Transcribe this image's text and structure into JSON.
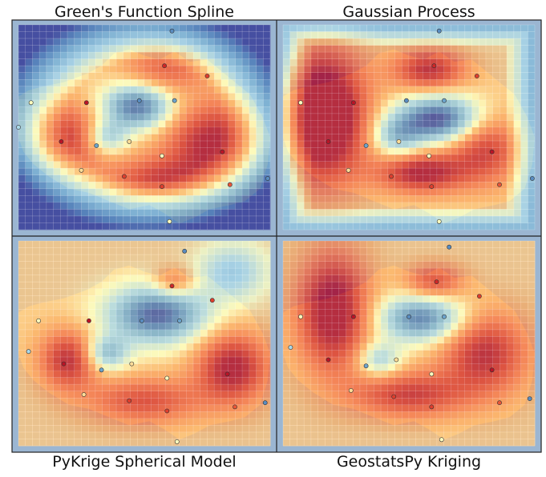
{
  "chart_data": [
    {
      "type": "heatmap",
      "title": "Green's Function Spline",
      "colormap": "RdYlBu_r",
      "background_color": "#9bb6d2",
      "land_color": "#f2e5a8",
      "grid": true,
      "blobs": [
        {
          "x": 0.47,
          "y": 0.4,
          "sx": 0.1,
          "sy": 0.08,
          "a": -0.55
        },
        {
          "x": 0.35,
          "y": 0.55,
          "sx": 0.06,
          "sy": 0.06,
          "a": -0.35
        },
        {
          "x": 0.2,
          "y": 0.55,
          "sx": 0.12,
          "sy": 0.12,
          "a": 0.35
        },
        {
          "x": 0.78,
          "y": 0.58,
          "sx": 0.14,
          "sy": 0.14,
          "a": 0.45
        },
        {
          "x": 0.58,
          "y": 0.22,
          "sx": 0.12,
          "sy": 0.08,
          "a": 0.25
        },
        {
          "x": 0.55,
          "y": 0.75,
          "sx": 0.14,
          "sy": 0.07,
          "a": 0.3
        }
      ],
      "edge_falloff": "elliptical",
      "points": [
        {
          "x": 0.61,
          "y": 0.03,
          "value": 0.15
        },
        {
          "x": 0.58,
          "y": 0.2,
          "value": 0.9
        },
        {
          "x": 0.75,
          "y": 0.25,
          "value": 0.85
        },
        {
          "x": 0.05,
          "y": 0.38,
          "value": 0.5
        },
        {
          "x": 0.27,
          "y": 0.38,
          "value": 0.95
        },
        {
          "x": 0.48,
          "y": 0.37,
          "value": 0.15
        },
        {
          "x": 0.62,
          "y": 0.37,
          "value": 0.2
        },
        {
          "x": 0.0,
          "y": 0.5,
          "value": 0.35
        },
        {
          "x": 0.17,
          "y": 0.57,
          "value": 0.95
        },
        {
          "x": 0.31,
          "y": 0.59,
          "value": 0.2
        },
        {
          "x": 0.44,
          "y": 0.57,
          "value": 0.55
        },
        {
          "x": 0.81,
          "y": 0.62,
          "value": 0.95
        },
        {
          "x": 0.57,
          "y": 0.64,
          "value": 0.5
        },
        {
          "x": 0.25,
          "y": 0.71,
          "value": 0.55
        },
        {
          "x": 0.42,
          "y": 0.74,
          "value": 0.85
        },
        {
          "x": 0.57,
          "y": 0.79,
          "value": 0.85
        },
        {
          "x": 0.84,
          "y": 0.78,
          "value": 0.8
        },
        {
          "x": 0.99,
          "y": 0.75,
          "value": 0.15
        },
        {
          "x": 0.6,
          "y": 0.96,
          "value": 0.5
        }
      ]
    },
    {
      "type": "heatmap",
      "title": "Gaussian Process",
      "colormap": "RdYlBu_r",
      "background_color": "#9bb6d2",
      "land_color": "#f2e5a8",
      "grid": true,
      "blobs": [
        {
          "x": 0.62,
          "y": 0.46,
          "sx": 0.12,
          "sy": 0.08,
          "a": -0.6
        },
        {
          "x": 0.45,
          "y": 0.55,
          "sx": 0.07,
          "sy": 0.07,
          "a": -0.3
        },
        {
          "x": 0.16,
          "y": 0.45,
          "sx": 0.12,
          "sy": 0.22,
          "a": 0.65
        },
        {
          "x": 0.58,
          "y": 0.22,
          "sx": 0.1,
          "sy": 0.07,
          "a": 0.4
        },
        {
          "x": 0.55,
          "y": 0.72,
          "sx": 0.12,
          "sy": 0.07,
          "a": 0.45
        },
        {
          "x": 0.8,
          "y": 0.6,
          "sx": 0.1,
          "sy": 0.12,
          "a": 0.35
        }
      ],
      "edge_falloff": "rectangular",
      "points": [
        {
          "x": 0.62,
          "y": 0.03,
          "value": 0.15
        },
        {
          "x": 0.6,
          "y": 0.2,
          "value": 0.9
        },
        {
          "x": 0.77,
          "y": 0.25,
          "value": 0.85
        },
        {
          "x": 0.07,
          "y": 0.38,
          "value": 0.5
        },
        {
          "x": 0.28,
          "y": 0.38,
          "value": 0.95
        },
        {
          "x": 0.49,
          "y": 0.37,
          "value": 0.15
        },
        {
          "x": 0.64,
          "y": 0.37,
          "value": 0.2
        },
        {
          "x": 0.18,
          "y": 0.57,
          "value": 0.95
        },
        {
          "x": 0.33,
          "y": 0.59,
          "value": 0.2
        },
        {
          "x": 0.46,
          "y": 0.57,
          "value": 0.55
        },
        {
          "x": 0.83,
          "y": 0.62,
          "value": 0.95
        },
        {
          "x": 0.58,
          "y": 0.64,
          "value": 0.5
        },
        {
          "x": 0.26,
          "y": 0.71,
          "value": 0.55
        },
        {
          "x": 0.43,
          "y": 0.74,
          "value": 0.85
        },
        {
          "x": 0.59,
          "y": 0.79,
          "value": 0.85
        },
        {
          "x": 0.86,
          "y": 0.78,
          "value": 0.8
        },
        {
          "x": 0.99,
          "y": 0.75,
          "value": 0.15
        },
        {
          "x": 0.62,
          "y": 0.96,
          "value": 0.5
        }
      ]
    },
    {
      "type": "heatmap",
      "title": "PyKrige Spherical Model",
      "colormap": "RdYlBu_r",
      "background_color": "#9bb6d2",
      "land_color": "#f2e5a8",
      "grid": true,
      "blobs": [
        {
          "x": 0.55,
          "y": 0.36,
          "sx": 0.14,
          "sy": 0.1,
          "a": -0.55
        },
        {
          "x": 0.35,
          "y": 0.55,
          "sx": 0.06,
          "sy": 0.06,
          "a": -0.35
        },
        {
          "x": 0.85,
          "y": 0.15,
          "sx": 0.1,
          "sy": 0.1,
          "a": -0.25
        },
        {
          "x": 0.2,
          "y": 0.58,
          "sx": 0.08,
          "sy": 0.1,
          "a": 0.4
        },
        {
          "x": 0.85,
          "y": 0.62,
          "sx": 0.1,
          "sy": 0.12,
          "a": 0.45
        },
        {
          "x": 0.62,
          "y": 0.2,
          "sx": 0.06,
          "sy": 0.05,
          "a": 0.25
        },
        {
          "x": 0.5,
          "y": 0.78,
          "sx": 0.16,
          "sy": 0.08,
          "a": 0.3
        }
      ],
      "edge_falloff": "none",
      "points": [
        {
          "x": 0.66,
          "y": 0.05,
          "value": 0.15
        },
        {
          "x": 0.61,
          "y": 0.22,
          "value": 0.9
        },
        {
          "x": 0.77,
          "y": 0.29,
          "value": 0.85
        },
        {
          "x": 0.08,
          "y": 0.39,
          "value": 0.5
        },
        {
          "x": 0.28,
          "y": 0.39,
          "value": 0.95
        },
        {
          "x": 0.49,
          "y": 0.39,
          "value": 0.15
        },
        {
          "x": 0.64,
          "y": 0.39,
          "value": 0.2
        },
        {
          "x": 0.04,
          "y": 0.54,
          "value": 0.35
        },
        {
          "x": 0.18,
          "y": 0.6,
          "value": 0.95
        },
        {
          "x": 0.33,
          "y": 0.63,
          "value": 0.2
        },
        {
          "x": 0.45,
          "y": 0.6,
          "value": 0.55
        },
        {
          "x": 0.83,
          "y": 0.65,
          "value": 0.95
        },
        {
          "x": 0.59,
          "y": 0.67,
          "value": 0.5
        },
        {
          "x": 0.26,
          "y": 0.75,
          "value": 0.55
        },
        {
          "x": 0.44,
          "y": 0.78,
          "value": 0.85
        },
        {
          "x": 0.59,
          "y": 0.83,
          "value": 0.85
        },
        {
          "x": 0.86,
          "y": 0.81,
          "value": 0.8
        },
        {
          "x": 0.98,
          "y": 0.79,
          "value": 0.15
        },
        {
          "x": 0.63,
          "y": 0.98,
          "value": 0.5
        }
      ]
    },
    {
      "type": "heatmap",
      "title": "GeostatsPy Kriging",
      "colormap": "RdYlBu_r",
      "background_color": "#9bb6d2",
      "land_color": "#f2e5a8",
      "grid": true,
      "blobs": [
        {
          "x": 0.55,
          "y": 0.38,
          "sx": 0.12,
          "sy": 0.08,
          "a": -0.5
        },
        {
          "x": 0.38,
          "y": 0.58,
          "sx": 0.06,
          "sy": 0.06,
          "a": -0.3
        },
        {
          "x": 0.2,
          "y": 0.35,
          "sx": 0.1,
          "sy": 0.2,
          "a": 0.5
        },
        {
          "x": 0.8,
          "y": 0.55,
          "sx": 0.12,
          "sy": 0.14,
          "a": 0.4
        },
        {
          "x": 0.6,
          "y": 0.2,
          "sx": 0.08,
          "sy": 0.06,
          "a": 0.3
        },
        {
          "x": 0.5,
          "y": 0.75,
          "sx": 0.16,
          "sy": 0.08,
          "a": 0.35
        }
      ],
      "edge_falloff": "none",
      "points": [
        {
          "x": 0.66,
          "y": 0.03,
          "value": 0.15
        },
        {
          "x": 0.61,
          "y": 0.2,
          "value": 0.9
        },
        {
          "x": 0.78,
          "y": 0.27,
          "value": 0.85
        },
        {
          "x": 0.07,
          "y": 0.37,
          "value": 0.5
        },
        {
          "x": 0.28,
          "y": 0.37,
          "value": 0.95
        },
        {
          "x": 0.5,
          "y": 0.37,
          "value": 0.15
        },
        {
          "x": 0.64,
          "y": 0.37,
          "value": 0.2
        },
        {
          "x": 0.03,
          "y": 0.52,
          "value": 0.35
        },
        {
          "x": 0.18,
          "y": 0.58,
          "value": 0.95
        },
        {
          "x": 0.33,
          "y": 0.61,
          "value": 0.2
        },
        {
          "x": 0.45,
          "y": 0.58,
          "value": 0.55
        },
        {
          "x": 0.83,
          "y": 0.63,
          "value": 0.95
        },
        {
          "x": 0.59,
          "y": 0.65,
          "value": 0.5
        },
        {
          "x": 0.27,
          "y": 0.73,
          "value": 0.55
        },
        {
          "x": 0.44,
          "y": 0.76,
          "value": 0.85
        },
        {
          "x": 0.59,
          "y": 0.81,
          "value": 0.85
        },
        {
          "x": 0.86,
          "y": 0.79,
          "value": 0.8
        },
        {
          "x": 0.98,
          "y": 0.77,
          "value": 0.15
        },
        {
          "x": 0.63,
          "y": 0.97,
          "value": 0.5
        }
      ]
    }
  ]
}
